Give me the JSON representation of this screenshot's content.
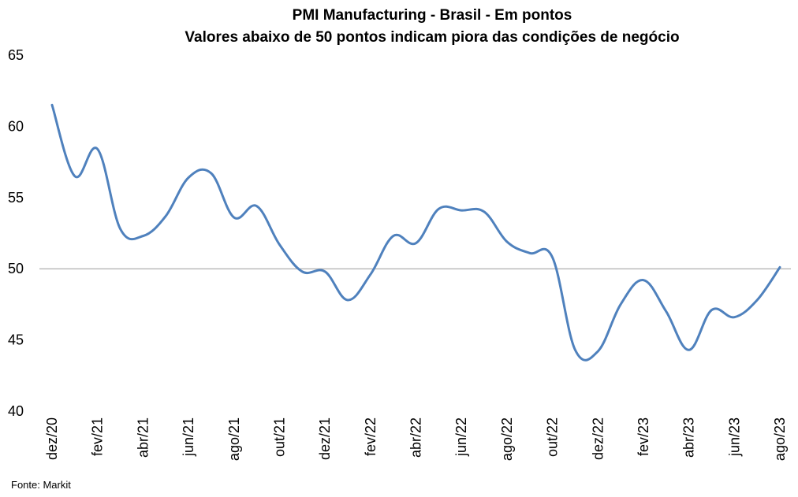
{
  "chart_data": {
    "type": "line",
    "title": "PMI Manufacturing - Brasil - Em pontos",
    "subtitle": "Valores abaixo de 50 pontos indicam piora das condições de negócio",
    "xlabel": "",
    "ylabel": "",
    "ylim": [
      40,
      65
    ],
    "yticks": [
      "40",
      "45",
      "50",
      "55",
      "60",
      "65"
    ],
    "reference_line": 50,
    "x": [
      "dez/20",
      "jan/21",
      "fev/21",
      "mar/21",
      "abr/21",
      "mai/21",
      "jun/21",
      "jul/21",
      "ago/21",
      "set/21",
      "out/21",
      "nov/21",
      "dez/21",
      "jan/22",
      "fev/22",
      "mar/22",
      "abr/22",
      "mai/22",
      "jun/22",
      "jul/22",
      "ago/22",
      "set/22",
      "out/22",
      "nov/22",
      "dez/22",
      "jan/23",
      "fev/23",
      "mar/23",
      "abr/23",
      "mai/23",
      "jun/23",
      "jul/23",
      "ago/23"
    ],
    "xtick_labels": [
      "dez/20",
      "fev/21",
      "abr/21",
      "jun/21",
      "ago/21",
      "out/21",
      "dez/21",
      "fev/22",
      "abr/22",
      "jun/22",
      "ago/22",
      "out/22",
      "dez/22",
      "fev/23",
      "abr/23",
      "jun/23",
      "ago/23"
    ],
    "series": [
      {
        "values": [
          61.5,
          56.5,
          58.4,
          52.8,
          52.3,
          53.7,
          56.4,
          56.7,
          53.6,
          54.4,
          51.7,
          49.8,
          49.8,
          47.8,
          49.6,
          52.3,
          51.8,
          54.2,
          54.1,
          54.0,
          51.9,
          51.1,
          50.8,
          44.3,
          44.2,
          47.5,
          49.2,
          47.0,
          44.3,
          47.1,
          46.6,
          47.8,
          50.1
        ],
        "color": "#4f81bd"
      }
    ],
    "grid": false,
    "legend": "none",
    "source": "Fonte: Markit"
  }
}
